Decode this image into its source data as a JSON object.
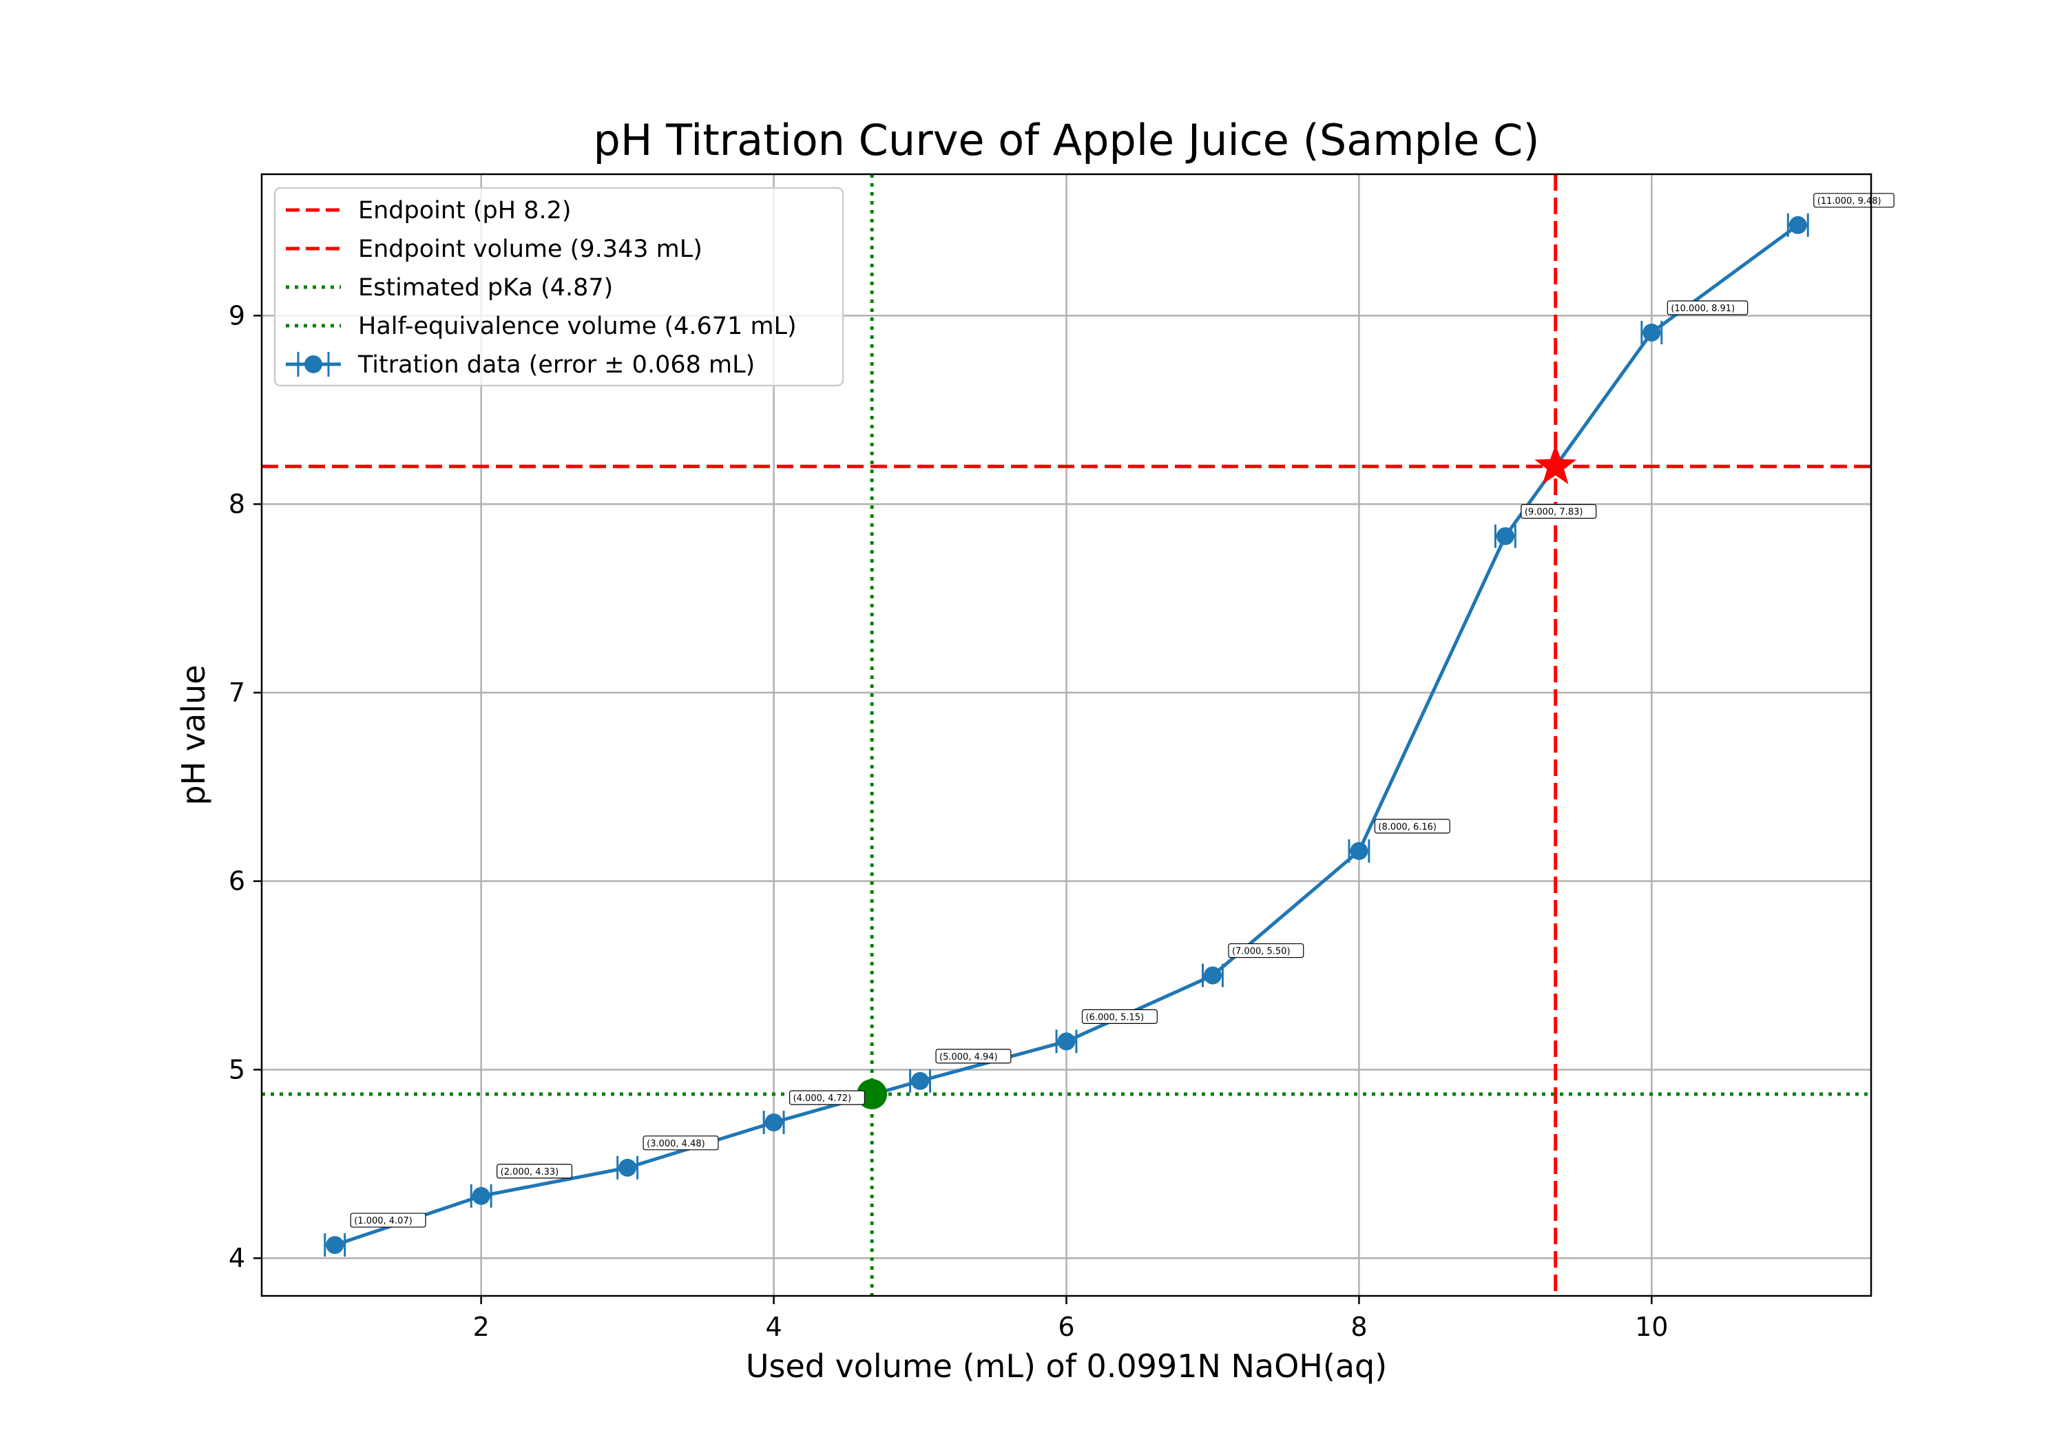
{
  "chart_data": {
    "type": "line",
    "title": "pH Titration Curve of Apple Juice (Sample C)",
    "xlabel": "Used volume (mL) of 0.0991N NaOH(aq)",
    "ylabel": "pH value",
    "xlim": [
      0.5,
      11.5
    ],
    "ylim": [
      3.8,
      9.75
    ],
    "xticks": [
      2,
      4,
      6,
      8,
      10
    ],
    "yticks": [
      4,
      5,
      6,
      7,
      8,
      9
    ],
    "xtick_labels": [
      "2",
      "4",
      "6",
      "8",
      "10"
    ],
    "ytick_labels": [
      "4",
      "5",
      "6",
      "7",
      "8",
      "9"
    ],
    "grid": true,
    "legend_position": "top-left",
    "series": [
      {
        "name": "Titration data (error ± 0.068 mL)",
        "color": "#1f77b4",
        "x": [
          1,
          2,
          3,
          4,
          5,
          6,
          7,
          8,
          9,
          10,
          11
        ],
        "y": [
          4.07,
          4.33,
          4.48,
          4.72,
          4.94,
          5.15,
          5.5,
          6.16,
          7.83,
          8.91,
          9.48
        ],
        "xerr": 0.068,
        "point_labels": [
          "(1.000, 4.07)",
          "(2.000, 4.33)",
          "(3.000, 4.48)",
          "(4.000, 4.72)",
          "(5.000, 4.94)",
          "(6.000, 5.15)",
          "(7.000, 5.50)",
          "(8.000, 6.16)",
          "(9.000, 7.83)",
          "(10.000, 8.91)",
          "(11.000, 9.48)"
        ]
      }
    ],
    "reference_lines": [
      {
        "name": "Endpoint (pH 8.2)",
        "orientation": "horizontal",
        "value": 8.2,
        "color": "#ff0000",
        "style": "dashed"
      },
      {
        "name": "Endpoint volume (9.343 mL)",
        "orientation": "vertical",
        "value": 9.343,
        "color": "#ff0000",
        "style": "dashed"
      },
      {
        "name": "Estimated pKa (4.87)",
        "orientation": "horizontal",
        "value": 4.87,
        "color": "#008000",
        "style": "dotted"
      },
      {
        "name": "Half-equivalence volume (4.671 mL)",
        "orientation": "vertical",
        "value": 4.671,
        "color": "#008000",
        "style": "dotted"
      }
    ],
    "markers": [
      {
        "name": "endpoint-star",
        "x": 9.343,
        "y": 8.2,
        "shape": "star",
        "color": "#ff0000"
      },
      {
        "name": "half-equivalence-dot",
        "x": 4.671,
        "y": 4.87,
        "shape": "circle",
        "color": "#008000"
      }
    ]
  }
}
